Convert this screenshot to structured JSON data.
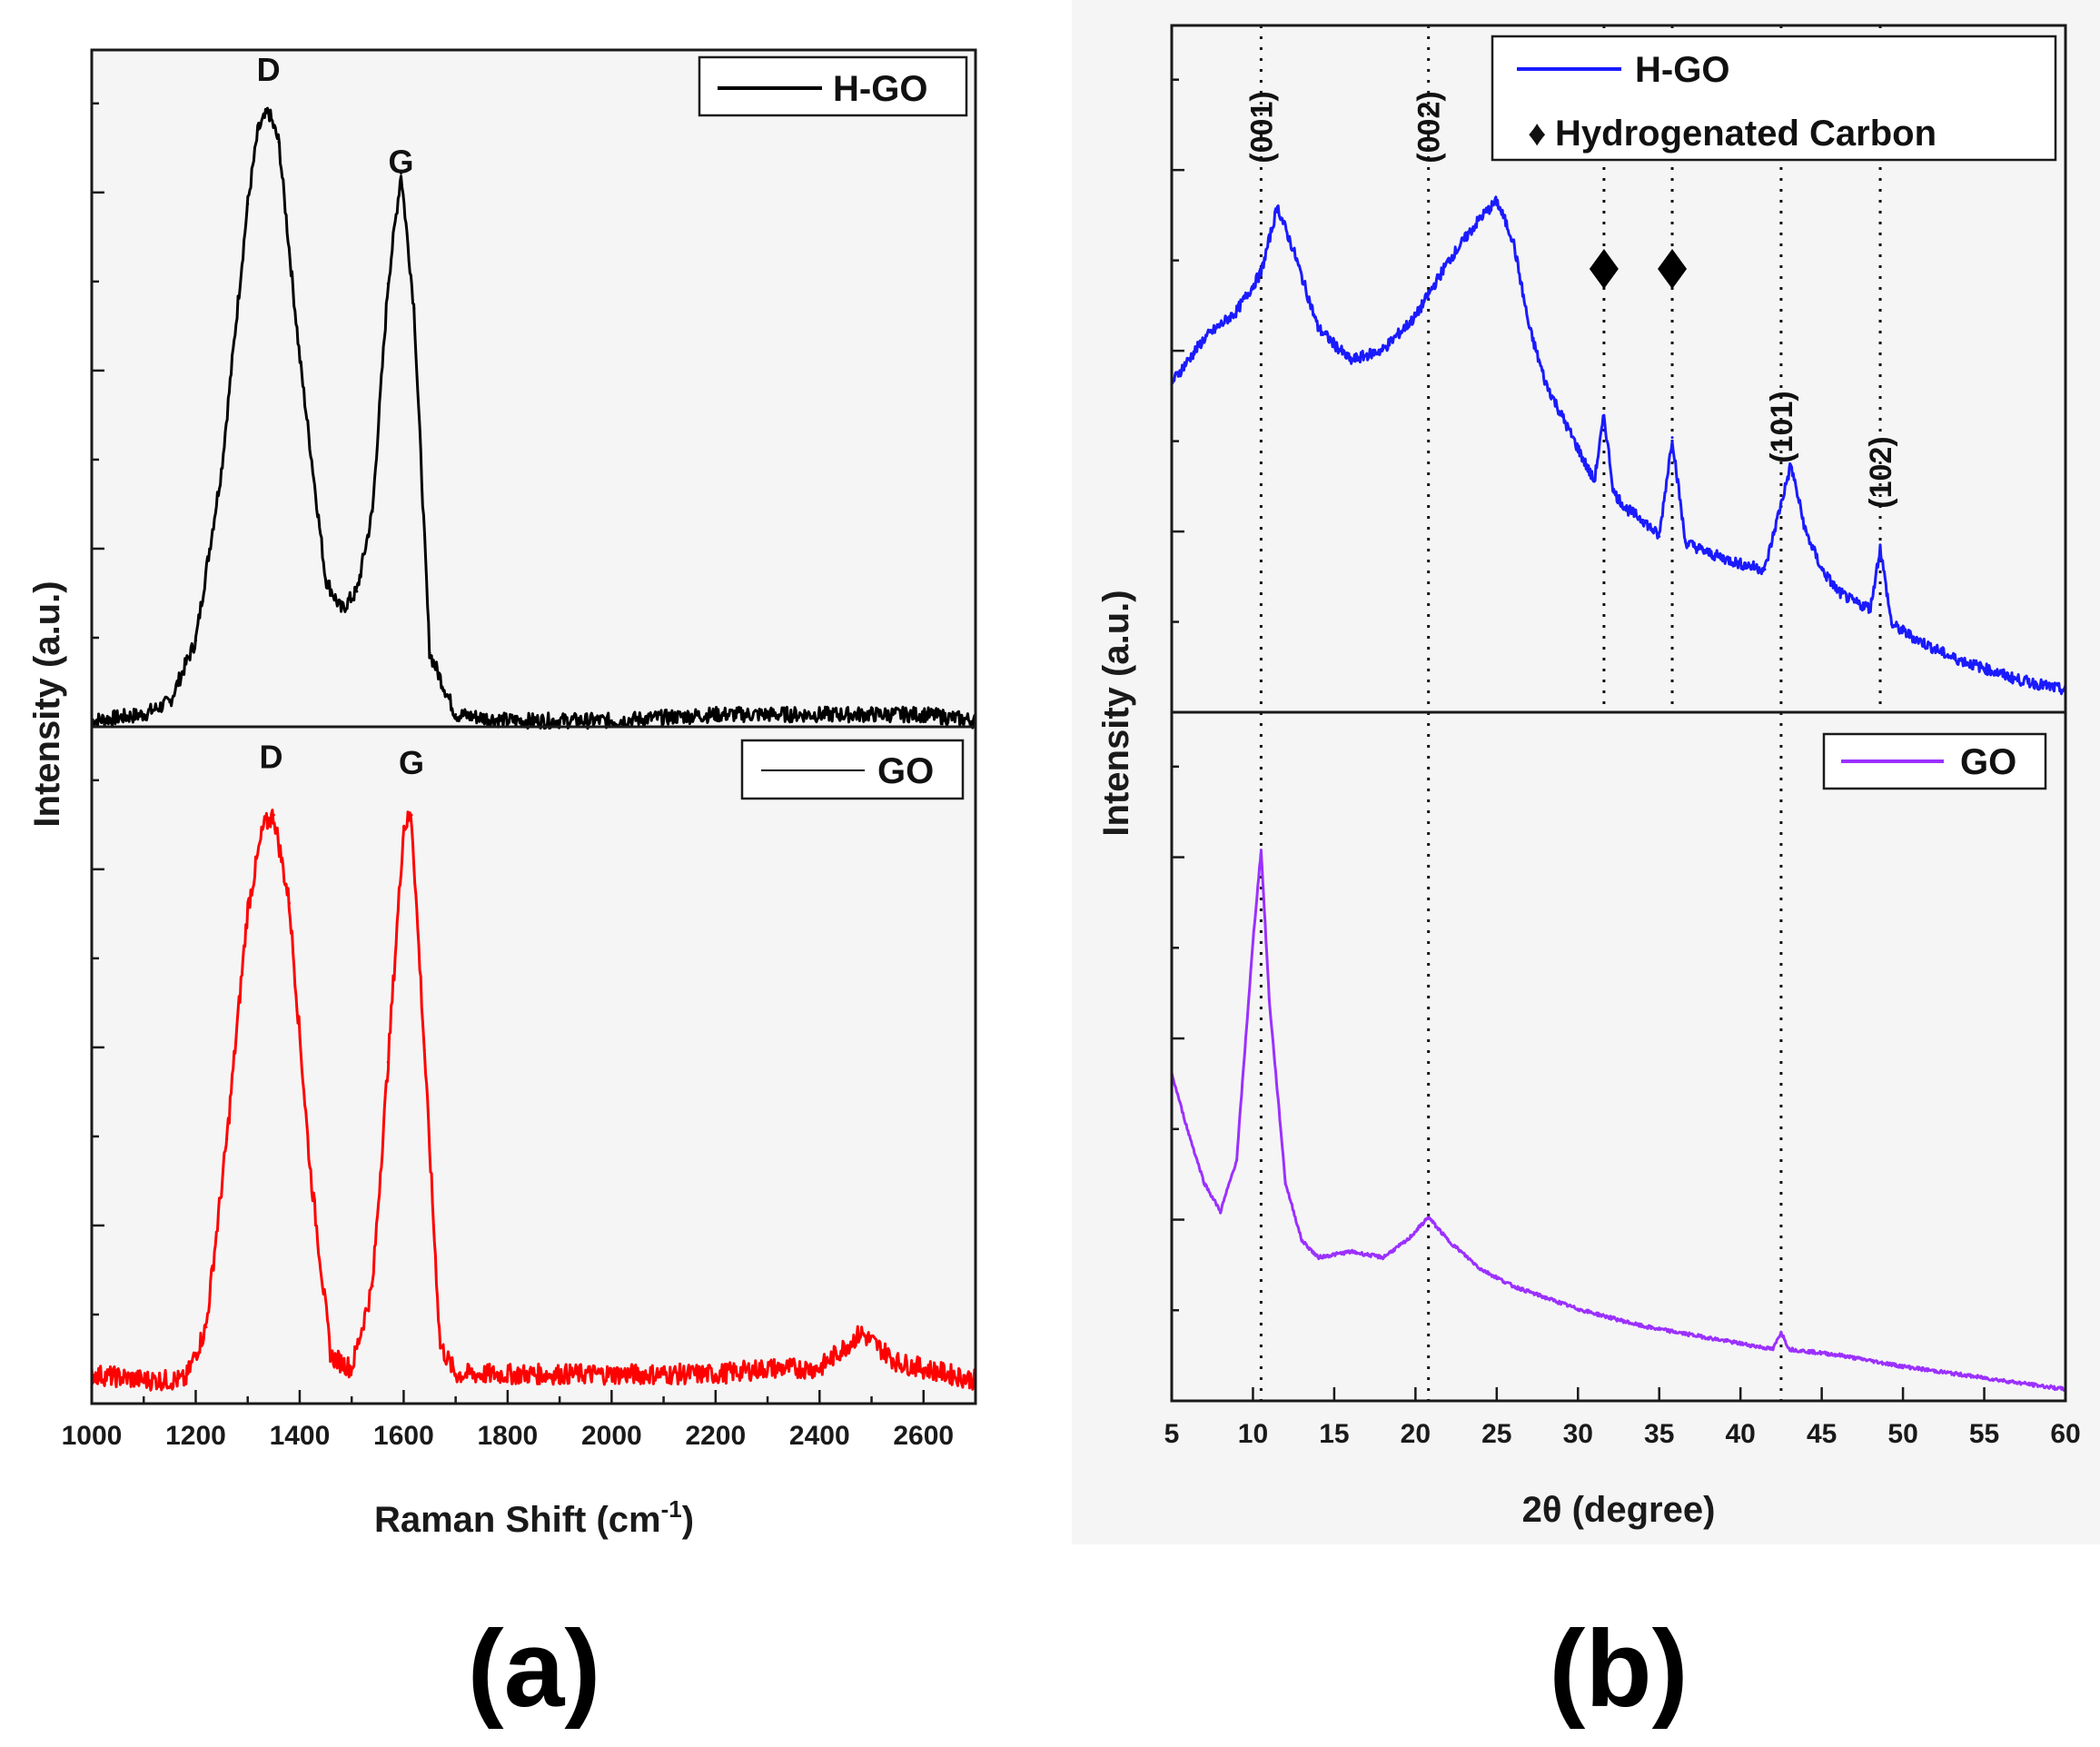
{
  "colors": {
    "hgo_raman": "#000000",
    "go_raman": "#ff0000",
    "hgo_xrd": "#1a1aff",
    "go_xrd": "#9b30ff",
    "panel_background": "#f5f5f5"
  },
  "chart_data": [
    {
      "type": "line",
      "panel_caption": "(a)",
      "title": "",
      "xlabel": "Raman Shift (cm",
      "xlabel_superscript": "-1",
      "xlabel_suffix": ")",
      "ylabel": "Intensity (a.u.)",
      "xlim": [
        1000,
        2700
      ],
      "x_ticks": [
        1000,
        1200,
        1400,
        1600,
        1800,
        2000,
        2200,
        2400,
        2600
      ],
      "x_tick_labels": [
        "1000",
        "1200",
        "1400",
        "1600",
        "1800",
        "2000",
        "2200",
        "2400",
        "2600"
      ],
      "subplots": [
        {
          "name": "H-GO",
          "legend": "H-GO",
          "legend_position": "top-right",
          "ylim": [
            0,
            1.1
          ],
          "color": "#000000",
          "annotations": [
            {
              "text": "D",
              "x": 1340,
              "y": 1.05
            },
            {
              "text": "G",
              "x": 1595,
              "y": 0.9
            }
          ],
          "x": [
            1000,
            1100,
            1150,
            1200,
            1250,
            1300,
            1320,
            1340,
            1360,
            1400,
            1450,
            1480,
            1510,
            1540,
            1570,
            1595,
            1620,
            1650,
            1700,
            1800,
            2000,
            2200,
            2400,
            2600,
            2700
          ],
          "values": [
            0.01,
            0.02,
            0.04,
            0.14,
            0.42,
            0.85,
            0.97,
            1.0,
            0.95,
            0.6,
            0.24,
            0.19,
            0.22,
            0.35,
            0.72,
            0.9,
            0.68,
            0.12,
            0.02,
            0.01,
            0.01,
            0.02,
            0.02,
            0.02,
            0.01
          ]
        },
        {
          "name": "GO",
          "legend": "GO",
          "legend_position": "top-right",
          "ylim": [
            0,
            1.15
          ],
          "color": "#ff0000",
          "annotations": [
            {
              "text": "D",
              "x": 1345,
              "y": 1.08
            },
            {
              "text": "G",
              "x": 1615,
              "y": 1.07
            }
          ],
          "x": [
            1000,
            1100,
            1180,
            1220,
            1260,
            1300,
            1330,
            1350,
            1380,
            1420,
            1460,
            1500,
            1540,
            1570,
            1600,
            1615,
            1640,
            1670,
            1700,
            1800,
            2000,
            2200,
            2300,
            2400,
            2480,
            2550,
            2600,
            2700
          ],
          "values": [
            0.05,
            0.04,
            0.04,
            0.13,
            0.45,
            0.84,
            0.98,
            1.0,
            0.85,
            0.4,
            0.08,
            0.06,
            0.2,
            0.58,
            0.98,
            1.0,
            0.6,
            0.1,
            0.05,
            0.05,
            0.05,
            0.05,
            0.06,
            0.06,
            0.12,
            0.07,
            0.06,
            0.04
          ]
        }
      ]
    },
    {
      "type": "line",
      "panel_caption": "(b)",
      "title": "",
      "xlabel": "2θ (degree)",
      "ylabel": "Intensity (a.u.)",
      "xlim": [
        5,
        60
      ],
      "x_ticks": [
        5,
        10,
        15,
        20,
        25,
        30,
        35,
        40,
        45,
        50,
        55,
        60
      ],
      "x_tick_labels": [
        "5",
        "10",
        "15",
        "20",
        "25",
        "30",
        "35",
        "40",
        "45",
        "50",
        "55",
        "60"
      ],
      "reference_lines": [
        10.5,
        20.8,
        31.6,
        35.8,
        42.5,
        48.6
      ],
      "plane_labels": [
        {
          "text": "(001)",
          "x": 10.5
        },
        {
          "text": "(002)",
          "x": 20.8
        },
        {
          "text": "(101)",
          "x": 42.5
        },
        {
          "text": "(102)",
          "x": 48.6
        }
      ],
      "marker_positions": [
        31.6,
        35.8
      ],
      "subplots": [
        {
          "name": "H-GO",
          "legend": "H-GO",
          "legend_marker_entry": "Hydrogenated Carbon",
          "legend_marker_symbol": "♦",
          "legend_position": "top-right",
          "ylim": [
            0,
            1.25
          ],
          "color": "#1a1aff",
          "x": [
            5,
            7,
            9,
            10.5,
            11.5,
            12.5,
            14,
            16,
            18,
            20,
            22,
            24,
            25,
            26,
            27,
            28,
            29,
            30,
            31,
            31.6,
            32.2,
            33,
            34,
            35,
            35.8,
            36.6,
            38,
            40,
            41.5,
            42.5,
            43.1,
            44,
            45,
            46,
            47,
            48,
            48.6,
            49.3,
            51,
            53,
            55,
            57,
            60
          ],
          "values": [
            0.6,
            0.68,
            0.73,
            0.8,
            0.92,
            0.84,
            0.7,
            0.64,
            0.66,
            0.72,
            0.82,
            0.9,
            0.93,
            0.86,
            0.7,
            0.6,
            0.54,
            0.48,
            0.42,
            0.54,
            0.4,
            0.37,
            0.35,
            0.32,
            0.5,
            0.31,
            0.29,
            0.27,
            0.26,
            0.38,
            0.45,
            0.33,
            0.26,
            0.22,
            0.2,
            0.19,
            0.3,
            0.16,
            0.13,
            0.1,
            0.08,
            0.06,
            0.04
          ]
        },
        {
          "name": "GO",
          "legend": "GO",
          "legend_position": "top-right",
          "ylim": [
            0,
            1.2
          ],
          "color": "#9b30ff",
          "x": [
            5,
            6,
            7,
            8,
            9,
            10,
            10.5,
            11,
            12,
            13,
            14,
            16,
            18,
            19.5,
            20.8,
            22,
            24,
            26,
            28,
            30,
            34,
            38,
            42,
            42.5,
            43,
            46,
            50,
            55,
            60
          ],
          "values": [
            0.57,
            0.47,
            0.38,
            0.33,
            0.42,
            0.8,
            0.96,
            0.7,
            0.38,
            0.28,
            0.25,
            0.26,
            0.25,
            0.28,
            0.32,
            0.28,
            0.23,
            0.2,
            0.18,
            0.16,
            0.13,
            0.11,
            0.09,
            0.12,
            0.09,
            0.08,
            0.06,
            0.04,
            0.02
          ]
        }
      ]
    }
  ]
}
